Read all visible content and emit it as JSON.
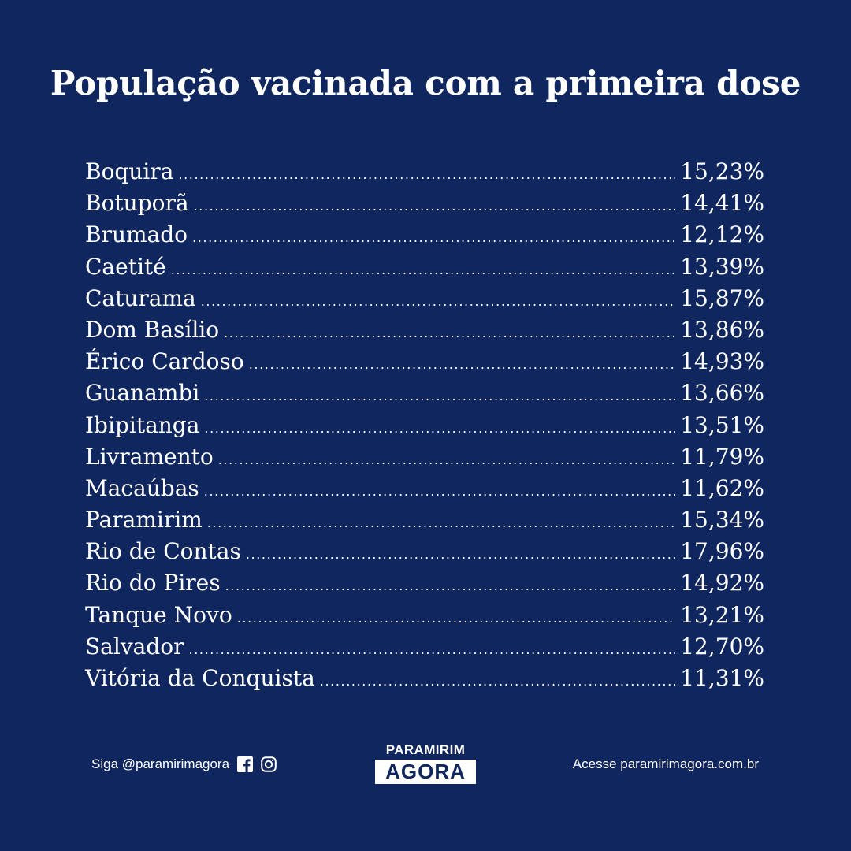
{
  "title": "População vacinada com a primeira dose",
  "rows": [
    {
      "name": "Boquira",
      "value": "15,23%"
    },
    {
      "name": "Botuporã",
      "value": "14,41%"
    },
    {
      "name": "Brumado",
      "value": "12,12%"
    },
    {
      "name": "Caetité",
      "value": "13,39%"
    },
    {
      "name": "Caturama",
      "value": "15,87%"
    },
    {
      "name": "Dom Basílio",
      "value": "13,86%"
    },
    {
      "name": "Érico Cardoso",
      "value": "14,93%"
    },
    {
      "name": "Guanambi",
      "value": "13,66%"
    },
    {
      "name": "Ibipitanga",
      "value": "13,51%"
    },
    {
      "name": "Livramento",
      "value": "11,79%"
    },
    {
      "name": "Macaúbas",
      "value": "11,62%"
    },
    {
      "name": "Paramirim",
      "value": "15,34%"
    },
    {
      "name": "Rio de Contas",
      "value": "17,96%"
    },
    {
      "name": "Rio do Pires",
      "value": "14,92%"
    },
    {
      "name": "Tanque Novo",
      "value": "13,21%"
    },
    {
      "name": "Salvador",
      "value": "12,70%"
    },
    {
      "name": "Vitória da Conquista",
      "value": "11,31%"
    }
  ],
  "footer": {
    "follow_text": "Siga @paramirimagora",
    "icons": [
      "facebook-icon",
      "instagram-icon"
    ],
    "logo_top": "PARAMIRIM",
    "logo_bottom": "AGORA",
    "site_text": "Acesse paramirimagora.com.br"
  },
  "colors": {
    "background": "#10265f",
    "text": "#ffffff"
  }
}
